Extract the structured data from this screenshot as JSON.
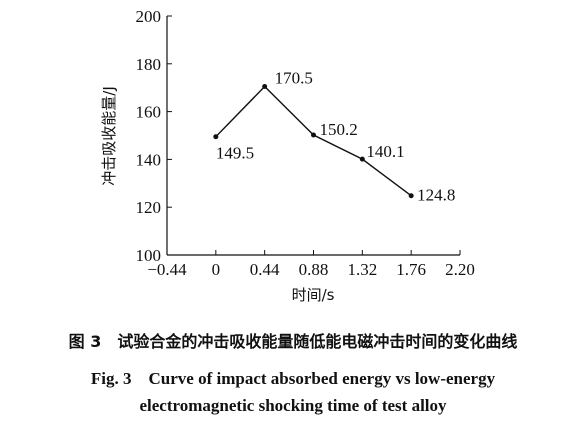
{
  "chart_data": {
    "type": "line",
    "x": [
      0,
      0.44,
      0.88,
      1.32,
      1.76
    ],
    "y": [
      149.5,
      170.5,
      150.2,
      140.1,
      124.8
    ],
    "data_labels": [
      "149.5",
      "170.5",
      "150.2",
      "140.1",
      "124.8"
    ],
    "xlabel": "时间/s",
    "ylabel": "冲击吸收能量/J",
    "xlim": [
      -0.44,
      2.2
    ],
    "ylim": [
      100,
      200
    ],
    "x_ticks": [
      -0.44,
      0,
      0.44,
      0.88,
      1.32,
      1.76,
      2.2
    ],
    "x_tick_labels": [
      "−0.44",
      "0",
      "0.44",
      "0.88",
      "1.32",
      "1.76",
      "2.20"
    ],
    "y_ticks": [
      100,
      120,
      140,
      160,
      180,
      200
    ],
    "y_tick_labels": [
      "100",
      "120",
      "140",
      "160",
      "180",
      "200"
    ],
    "grid": false,
    "legend": "none"
  },
  "caption": {
    "cn": "图 3　试验合金的冲击吸收能量随低能电磁冲击时间的变化曲线",
    "en_line1": "Fig. 3　Curve of impact absorbed energy vs low-energy",
    "en_line2": "electromagnetic shocking time of test alloy"
  }
}
